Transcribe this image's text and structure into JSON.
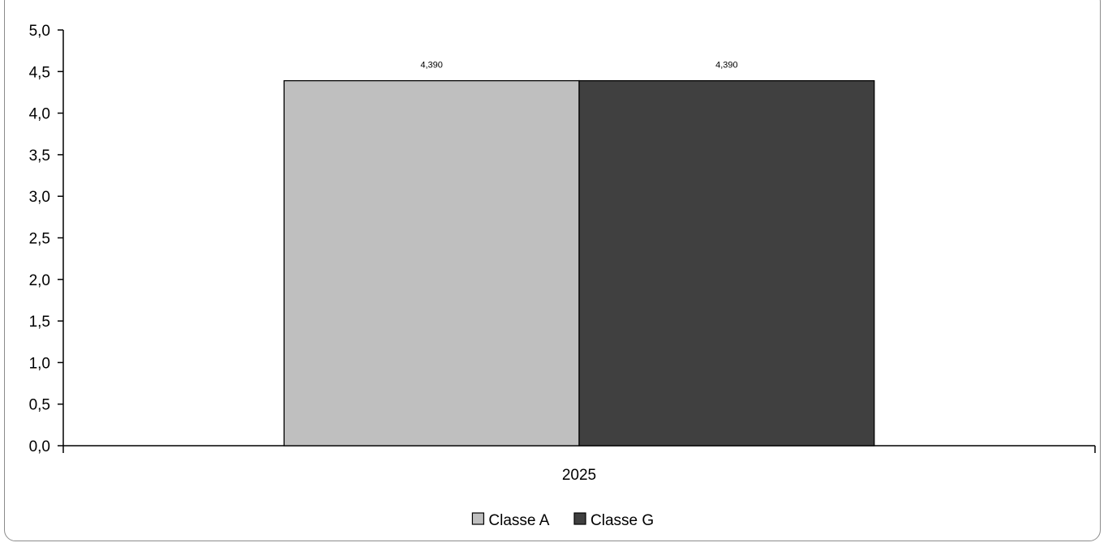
{
  "chart_data": {
    "type": "bar",
    "categories": [
      "2025"
    ],
    "series": [
      {
        "name": "Classe A",
        "values": [
          4.39
        ],
        "color": "#bfbfbf",
        "label": "4,390"
      },
      {
        "name": "Classe G",
        "values": [
          4.39
        ],
        "color": "#404040",
        "label": "4,390"
      }
    ],
    "ylim": [
      0,
      5
    ],
    "ytick_labels": [
      "0,0",
      "0,5",
      "1,0",
      "1,5",
      "2,0",
      "2,5",
      "3,0",
      "3,5",
      "4,0",
      "4,5",
      "5,0"
    ],
    "grid": false,
    "legend_position": "bottom"
  }
}
